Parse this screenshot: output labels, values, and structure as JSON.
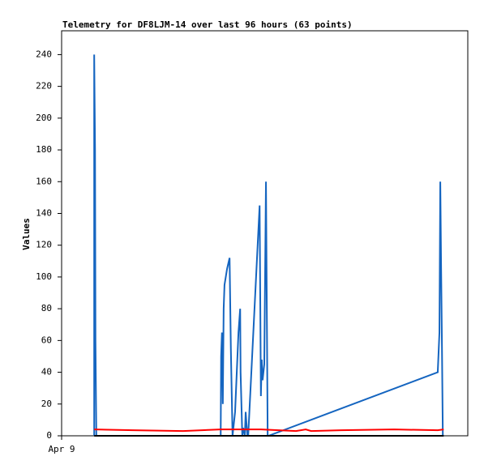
{
  "chart_data": {
    "type": "line",
    "title": "Telemetry for DF8LJM-14 over last 96 hours (63 points)",
    "y_label": "Values",
    "xlim": [
      0,
      96
    ],
    "xticks": [
      {
        "value": 0,
        "label": "Apr 9"
      }
    ],
    "ylim": [
      0,
      255
    ],
    "yticks": [
      0,
      20,
      40,
      60,
      80,
      100,
      120,
      140,
      160,
      180,
      200,
      220,
      240
    ],
    "grid": false,
    "series": [
      {
        "color": "#1565c0",
        "x": [
          7.7,
          7.7,
          7.9,
          8.0,
          8.2,
          37.6,
          37.7,
          37.9,
          38.1,
          38.3,
          38.5,
          39.1,
          39.7,
          40.0,
          40.4,
          40.6,
          41.0,
          41.8,
          42.2,
          42.3,
          42.7,
          42.9,
          43.3,
          43.5,
          43.9,
          44.1,
          46.8,
          47.1,
          47.3,
          47.5,
          47.9,
          48.3,
          48.5,
          48.7,
          48.9,
          88.9,
          89.3,
          89.5,
          89.7,
          89.9,
          90.1,
          90.3
        ],
        "values": [
          0,
          240,
          180,
          60,
          0,
          0,
          50,
          65,
          20,
          80,
          95,
          105,
          112,
          55,
          0,
          5,
          15,
          65,
          80,
          40,
          0,
          5,
          0,
          15,
          0,
          0,
          145,
          25,
          48,
          35,
          45,
          160,
          80,
          0,
          0,
          40,
          65,
          160,
          105,
          55,
          0,
          0
        ]
      },
      {
        "color": "#ff0000",
        "x": [
          7.7,
          16.9,
          28.7,
          37.6,
          47.1,
          55.4,
          57.7,
          59.0,
          66.1,
          78.6,
          88.9,
          90.3
        ],
        "values": [
          4,
          3.5,
          3,
          4,
          4,
          3,
          4,
          3,
          3.5,
          4,
          3.5,
          4
        ]
      },
      {
        "color": "#000000",
        "x": [
          7.7,
          90.3
        ],
        "values": [
          0,
          0
        ]
      }
    ]
  }
}
